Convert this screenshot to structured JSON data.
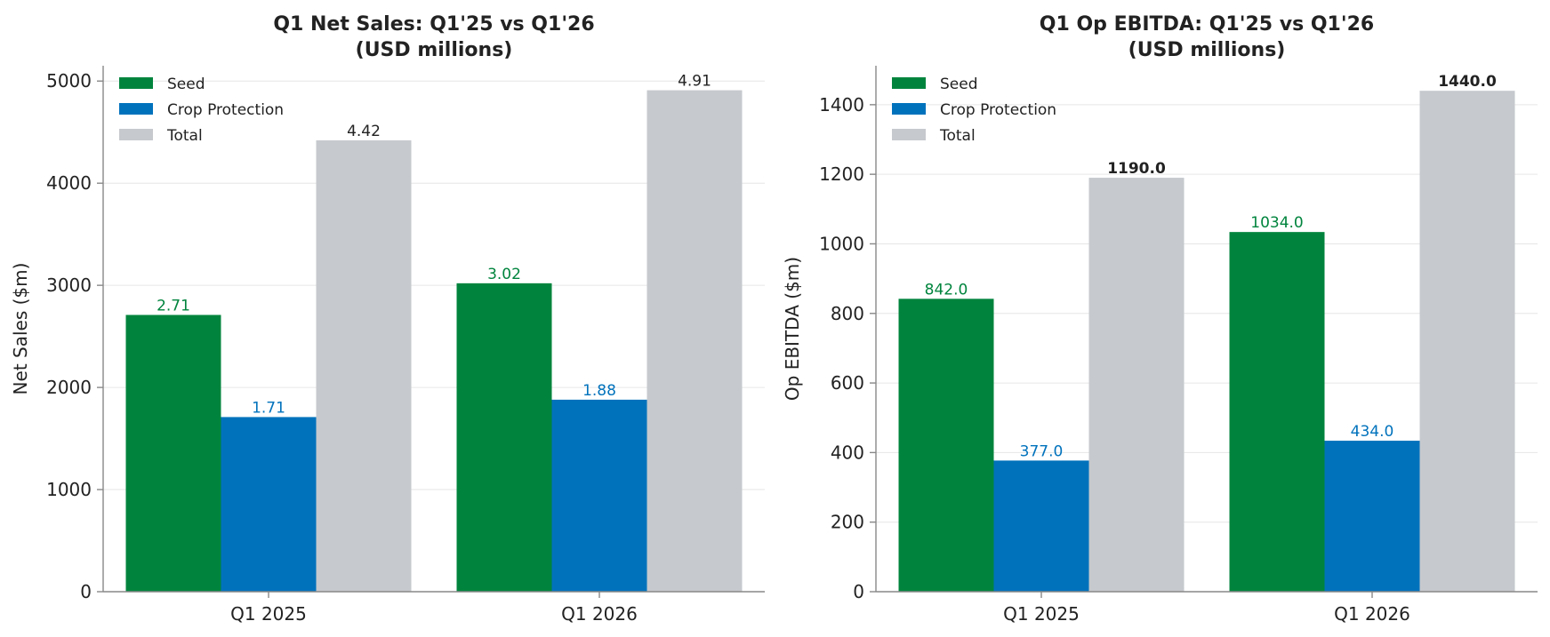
{
  "colors": {
    "seed": "#00843D",
    "crop": "#0072BC",
    "total": "#C6C9CD",
    "text": "#222222"
  },
  "chart_data": [
    {
      "type": "bar",
      "title_lines": [
        "Q1 Net Sales: Q1'25 vs Q1'26",
        "(USD millions)"
      ],
      "ylabel": "Net Sales ($m)",
      "ylim": [
        0,
        5150
      ],
      "yticks": [
        "0",
        "1000",
        "2000",
        "3000",
        "4000",
        "5000"
      ],
      "grid": true,
      "legend_position": "top-left",
      "categories": [
        "Q1 2025",
        "Q1 2026"
      ],
      "series": [
        {
          "name": "Seed",
          "values": [
            2710,
            3020
          ],
          "labels": [
            "2.71",
            "3.02"
          ],
          "bold_labels": false
        },
        {
          "name": "Crop Protection",
          "values": [
            1710,
            1880
          ],
          "labels": [
            "1.71",
            "1.88"
          ],
          "bold_labels": false
        },
        {
          "name": "Total",
          "values": [
            4420,
            4910
          ],
          "labels": [
            "4.42",
            "4.91"
          ],
          "bold_labels": false
        }
      ]
    },
    {
      "type": "bar",
      "title_lines": [
        "Q1 Op EBITDA: Q1'25 vs Q1'26",
        "(USD millions)"
      ],
      "ylabel": "Op EBITDA ($m)",
      "ylim": [
        0,
        1512
      ],
      "yticks": [
        "0",
        "200",
        "400",
        "600",
        "800",
        "1000",
        "1200",
        "1400"
      ],
      "grid": true,
      "legend_position": "top-left",
      "categories": [
        "Q1 2025",
        "Q1 2026"
      ],
      "series": [
        {
          "name": "Seed",
          "values": [
            842,
            1034
          ],
          "labels": [
            "842.0",
            "1034.0"
          ],
          "bold_labels": false
        },
        {
          "name": "Crop Protection",
          "values": [
            377,
            434
          ],
          "labels": [
            "377.0",
            "434.0"
          ],
          "bold_labels": false
        },
        {
          "name": "Total",
          "values": [
            1190,
            1440
          ],
          "labels": [
            "1190.0",
            "1440.0"
          ],
          "bold_labels": true
        }
      ]
    }
  ]
}
